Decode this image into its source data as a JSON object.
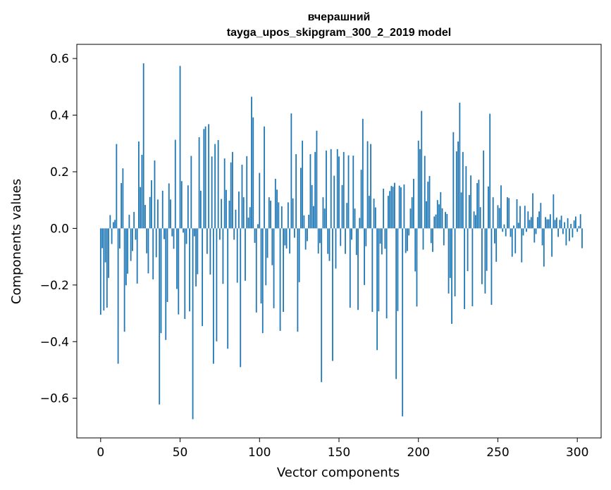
{
  "chart_data": {
    "type": "bar",
    "title_line1": "вчерашний",
    "title_line2": "tayga_upos_skipgram_300_2_2019 model",
    "xlabel": "Vector components",
    "ylabel": "Components values",
    "xlim": [
      -15,
      315
    ],
    "ylim": [
      -0.74,
      0.65
    ],
    "xticks": [
      0,
      50,
      100,
      150,
      200,
      250,
      300
    ],
    "xtick_labels": [
      "0",
      "50",
      "100",
      "150",
      "200",
      "250",
      "300"
    ],
    "yticks": [
      -0.6,
      -0.4,
      -0.2,
      0.0,
      0.2,
      0.4,
      0.6
    ],
    "ytick_labels": [
      "−0.6",
      "−0.4",
      "−0.2",
      "0.0",
      "0.2",
      "0.4",
      "0.6"
    ],
    "bar_color": "#1f77b4",
    "values": [
      -0.305,
      -0.07,
      -0.29,
      -0.12,
      -0.28,
      -0.175,
      0.047,
      -0.055,
      0.022,
      0.03,
      0.298,
      -0.478,
      -0.071,
      0.16,
      0.212,
      -0.365,
      -0.201,
      -0.16,
      0.048,
      -0.115,
      -0.08,
      0.058,
      -0.04,
      -0.195,
      0.307,
      0.146,
      0.26,
      0.583,
      0.083,
      -0.088,
      -0.159,
      0.111,
      0.17,
      -0.18,
      0.24,
      -0.102,
      0.102,
      -0.622,
      -0.37,
      0.133,
      -0.038,
      -0.394,
      -0.26,
      0.159,
      0.102,
      -0.028,
      -0.072,
      0.313,
      -0.214,
      -0.304,
      0.574,
      0.167,
      -0.015,
      -0.32,
      -0.055,
      0.152,
      -0.293,
      0.256,
      -0.674,
      -0.028,
      -0.205,
      -0.162,
      0.322,
      0.133,
      -0.345,
      0.351,
      0.36,
      -0.09,
      0.368,
      -0.163,
      0.254,
      -0.478,
      0.298,
      -0.399,
      0.312,
      -0.04,
      0.104,
      -0.196,
      0.247,
      0.136,
      -0.425,
      0.098,
      0.233,
      0.27,
      -0.04,
      0.066,
      -0.192,
      0.13,
      -0.49,
      0.225,
      0.11,
      -0.185,
      0.255,
      0.038,
      0.075,
      0.465,
      0.392,
      -0.051,
      -0.297,
      0.015,
      0.196,
      -0.265,
      -0.37,
      0.36,
      -0.201,
      -0.104,
      0.11,
      0.098,
      -0.13,
      -0.282,
      0.175,
      0.137,
      0.092,
      -0.362,
      0.078,
      -0.295,
      -0.06,
      -0.071,
      0.092,
      -0.089,
      0.406,
      0.106,
      -0.033,
      0.262,
      -0.365,
      -0.19,
      0.214,
      0.31,
      0.046,
      -0.075,
      -0.045,
      0.048,
      0.262,
      0.153,
      0.079,
      0.27,
      0.345,
      -0.089,
      -0.052,
      -0.543,
      0.11,
      0.07,
      0.275,
      -0.09,
      -0.115,
      0.28,
      -0.468,
      0.186,
      -0.142,
      0.28,
      0.254,
      -0.062,
      0.153,
      0.27,
      -0.09,
      0.09,
      0.258,
      -0.28,
      -0.04,
      0.257,
      0.07,
      -0.094,
      -0.288,
      0.037,
      0.207,
      0.387,
      -0.2,
      -0.063,
      0.308,
      0.115,
      0.298,
      -0.295,
      0.105,
      0.074,
      -0.43,
      -0.293,
      -0.054,
      -0.092,
      0.14,
      -0.072,
      -0.318,
      0.115,
      0.132,
      0.15,
      0.147,
      0.161,
      -0.532,
      -0.292,
      0.151,
      0.145,
      -0.664,
      0.155,
      -0.087,
      -0.08,
      -0.025,
      0.07,
      0.11,
      0.175,
      -0.152,
      -0.276,
      0.31,
      0.28,
      0.415,
      -0.075,
      0.256,
      0.096,
      0.165,
      0.185,
      -0.052,
      -0.083,
      0.042,
      0.049,
      0.1,
      0.085,
      0.128,
      0.071,
      -0.06,
      0.058,
      0.051,
      -0.23,
      -0.175,
      -0.337,
      0.34,
      -0.24,
      0.272,
      0.307,
      0.444,
      0.127,
      0.27,
      -0.285,
      0.22,
      -0.151,
      0.118,
      0.187,
      -0.275,
      0.06,
      0.047,
      0.16,
      0.172,
      0.075,
      -0.197,
      0.275,
      -0.23,
      -0.15,
      0.148,
      0.405,
      -0.27,
      0.11,
      -0.053,
      -0.118,
      0.082,
      0.072,
      0.152,
      -0.012,
      0.014,
      -0.028,
      0.11,
      0.107,
      -0.03,
      -0.1,
      0.01,
      -0.088,
      0.103,
      0.02,
      0.079,
      -0.12,
      -0.025,
      0.08,
      -0.012,
      0.06,
      0.03,
      0.04,
      0.124,
      -0.05,
      -0.02,
      0.04,
      0.06,
      0.09,
      -0.06,
      -0.135,
      0.04,
      0.032,
      0.032,
      0.05,
      -0.1,
      0.12,
      0.03,
      0.038,
      -0.03,
      0.03,
      0.045,
      -0.02,
      0.022,
      -0.06,
      0.036,
      -0.045,
      0.016,
      -0.032,
      0.028,
      0.042,
      -0.012,
      0.008,
      0.05,
      -0.07
    ]
  }
}
